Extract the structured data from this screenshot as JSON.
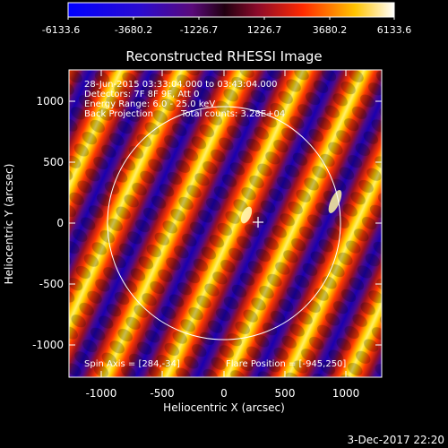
{
  "title": "Reconstructed RHESSI Image",
  "colorbar": {
    "ticks": [
      "-6133.6",
      "-3680.2",
      "-1226.7",
      "1226.7",
      "3680.2",
      "6133.6"
    ]
  },
  "annotations": {
    "time": "28-Jun-2015 03:33:04.000 to 03:43:04.000",
    "detectors": "Detectors: 7F 8F 9F, Att 0",
    "energy": "Energy Range: 6.0 - 25.0 keV",
    "method": "Back Projection",
    "counts": "Total counts: 3.28E+04",
    "spin_axis": "Spin Axis = [284,-34]",
    "flare_position": "Flare Position = [-945,250]"
  },
  "axes": {
    "xlabel": "Heliocentric X (arcsec)",
    "ylabel": "Heliocentric Y (arcsec)",
    "xticks": [
      "-1000",
      "-500",
      "0",
      "500",
      "1000"
    ],
    "yticks": [
      "1000",
      "500",
      "0",
      "-500",
      "-1000"
    ]
  },
  "footer_date": "3-Dec-2017 22:20",
  "colors": {
    "palette": [
      "#0000ff",
      "#3a0b8c",
      "#000000",
      "#8b1a1a",
      "#ff2a00",
      "#ffd200",
      "#ffffff"
    ],
    "background": "#000000"
  }
}
